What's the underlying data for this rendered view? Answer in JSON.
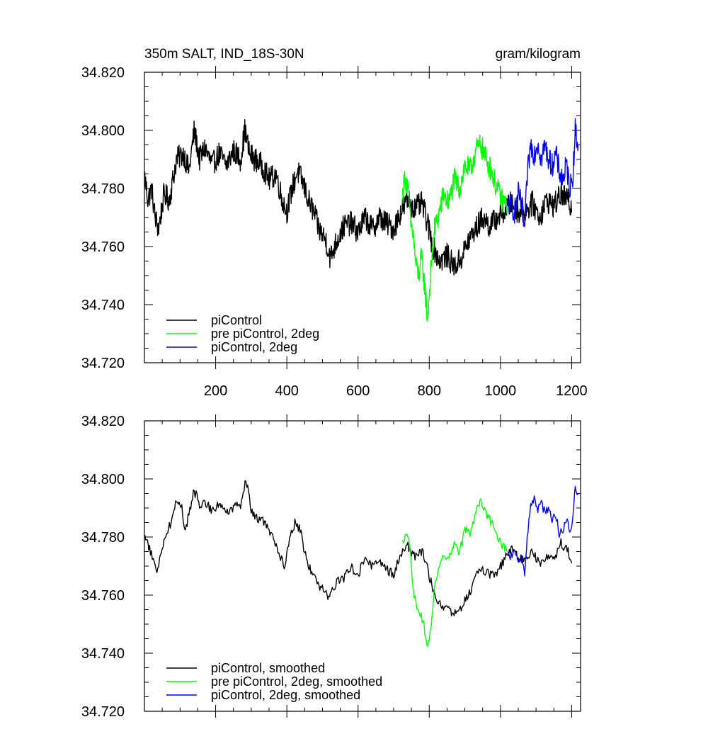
{
  "chart_data": [
    {
      "type": "line",
      "title_left": "350m SALT, IND_18S-30N",
      "title_right": "gram/kilogram",
      "xlabel": "",
      "ylabel": "",
      "xlim": [
        0,
        1225
      ],
      "ylim": [
        34.72,
        34.82
      ],
      "x_ticks": [
        200,
        400,
        600,
        800,
        1000,
        1200
      ],
      "x_tick_labels": [
        "200",
        "400",
        "600",
        "800",
        "1000",
        "1200"
      ],
      "y_ticks": [
        34.72,
        34.74,
        34.76,
        34.78,
        34.8,
        34.82
      ],
      "y_tick_labels": [
        "34.720",
        "34.740",
        "34.760",
        "34.780",
        "34.800",
        "34.820"
      ],
      "grid": false,
      "legend_position": "bottom-left",
      "series": [
        {
          "name": "piControl",
          "color": "#000000",
          "x": [
            1,
            10,
            20,
            30,
            40,
            55,
            70,
            90,
            110,
            125,
            140,
            155,
            170,
            190,
            210,
            230,
            250,
            270,
            282,
            295,
            310,
            330,
            350,
            370,
            385,
            400,
            415,
            430,
            445,
            460,
            475,
            490,
            510,
            522,
            540,
            560,
            580,
            600,
            620,
            640,
            660,
            680,
            700,
            720,
            740,
            760,
            780,
            795,
            810,
            830,
            850,
            870,
            890,
            910,
            930,
            950,
            970,
            990,
            1010,
            1030,
            1050,
            1070,
            1090,
            1110,
            1130,
            1150,
            1170,
            1190,
            1200
          ],
          "values": [
            34.784,
            34.776,
            34.78,
            34.77,
            34.766,
            34.778,
            34.776,
            34.79,
            34.792,
            34.786,
            34.8,
            34.79,
            34.794,
            34.788,
            34.792,
            34.788,
            34.793,
            34.79,
            34.8,
            34.792,
            34.79,
            34.788,
            34.783,
            34.785,
            34.777,
            34.772,
            34.78,
            34.786,
            34.782,
            34.776,
            34.772,
            34.766,
            34.762,
            34.756,
            34.762,
            34.767,
            34.768,
            34.765,
            34.77,
            34.766,
            34.77,
            34.768,
            34.766,
            34.772,
            34.776,
            34.773,
            34.775,
            34.768,
            34.76,
            34.755,
            34.757,
            34.753,
            34.756,
            34.762,
            34.766,
            34.77,
            34.767,
            34.77,
            34.772,
            34.775,
            34.772,
            34.772,
            34.775,
            34.77,
            34.776,
            34.774,
            34.778,
            34.776,
            34.773
          ]
        },
        {
          "name": "pre piControl, 2deg",
          "color": "#00ff00",
          "x": [
            725,
            732,
            740,
            748,
            755,
            762,
            770,
            778,
            786,
            795,
            805,
            815,
            825,
            840,
            855,
            870,
            885,
            900,
            915,
            930,
            945,
            960,
            975,
            990,
            1005,
            1020
          ],
          "values": [
            34.778,
            34.784,
            34.78,
            34.768,
            34.764,
            34.754,
            34.75,
            34.756,
            34.748,
            34.735,
            34.752,
            34.766,
            34.77,
            34.778,
            34.775,
            34.783,
            34.78,
            34.788,
            34.786,
            34.793,
            34.795,
            34.79,
            34.786,
            34.78,
            34.776,
            34.774
          ]
        },
        {
          "name": "piControl, 2deg",
          "color": "#0000ff",
          "x": [
            1020,
            1030,
            1040,
            1050,
            1060,
            1068,
            1075,
            1085,
            1095,
            1105,
            1115,
            1125,
            1135,
            1145,
            1155,
            1165,
            1175,
            1185,
            1195,
            1203,
            1210,
            1218
          ],
          "values": [
            34.775,
            34.774,
            34.772,
            34.778,
            34.774,
            34.766,
            34.784,
            34.795,
            34.792,
            34.796,
            34.79,
            34.795,
            34.79,
            34.788,
            34.792,
            34.786,
            34.783,
            34.788,
            34.78,
            34.784,
            34.8,
            34.795
          ]
        }
      ]
    },
    {
      "type": "line",
      "xlabel": "",
      "ylabel": "",
      "xlim": [
        0,
        1225
      ],
      "ylim": [
        34.72,
        34.82
      ],
      "x_ticks": [
        200,
        400,
        600,
        800,
        1000,
        1200
      ],
      "y_ticks": [
        34.72,
        34.74,
        34.76,
        34.78,
        34.8,
        34.82
      ],
      "y_tick_labels": [
        "34.720",
        "34.740",
        "34.760",
        "34.780",
        "34.800",
        "34.820"
      ],
      "grid": false,
      "legend_position": "bottom-left",
      "series": [
        {
          "name": "piControl, smoothed",
          "color": "#000000",
          "x": [
            1,
            12,
            25,
            35,
            45,
            60,
            75,
            90,
            105,
            115,
            125,
            140,
            155,
            170,
            190,
            210,
            230,
            250,
            270,
            285,
            300,
            320,
            340,
            360,
            380,
            395,
            410,
            425,
            440,
            455,
            470,
            485,
            500,
            520,
            540,
            560,
            580,
            600,
            620,
            640,
            660,
            680,
            700,
            720,
            740,
            760,
            780,
            795,
            810,
            830,
            850,
            870,
            890,
            910,
            930,
            950,
            970,
            990,
            1010,
            1030,
            1050,
            1070,
            1090,
            1110,
            1130,
            1150,
            1170,
            1190,
            1200
          ],
          "values": [
            34.78,
            34.777,
            34.772,
            34.767,
            34.774,
            34.781,
            34.785,
            34.793,
            34.79,
            34.782,
            34.788,
            34.796,
            34.791,
            34.792,
            34.789,
            34.792,
            34.788,
            34.79,
            34.791,
            34.8,
            34.789,
            34.786,
            34.785,
            34.78,
            34.773,
            34.77,
            34.78,
            34.786,
            34.781,
            34.772,
            34.768,
            34.764,
            34.762,
            34.759,
            34.765,
            34.766,
            34.77,
            34.767,
            34.773,
            34.77,
            34.771,
            34.769,
            34.767,
            34.774,
            34.777,
            34.773,
            34.775,
            34.769,
            34.762,
            34.757,
            34.755,
            34.754,
            34.756,
            34.76,
            34.766,
            34.769,
            34.767,
            34.768,
            34.772,
            34.776,
            34.773,
            34.772,
            34.775,
            34.771,
            34.774,
            34.772,
            34.778,
            34.775,
            34.771
          ]
        },
        {
          "name": "pre piControl, 2deg, smoothed",
          "color": "#00ff00",
          "x": [
            725,
            735,
            745,
            755,
            765,
            775,
            785,
            795,
            805,
            815,
            825,
            840,
            855,
            870,
            885,
            900,
            915,
            930,
            945,
            960,
            975,
            990,
            1005,
            1020
          ],
          "values": [
            34.778,
            34.782,
            34.777,
            34.762,
            34.755,
            34.753,
            34.75,
            34.741,
            34.75,
            34.762,
            34.768,
            34.773,
            34.772,
            34.778,
            34.774,
            34.783,
            34.781,
            34.788,
            34.793,
            34.788,
            34.785,
            34.78,
            34.777,
            34.775
          ]
        },
        {
          "name": "piControl, 2deg, smoothed",
          "color": "#0000ff",
          "x": [
            1020,
            1030,
            1040,
            1050,
            1060,
            1068,
            1075,
            1085,
            1095,
            1105,
            1115,
            1125,
            1135,
            1145,
            1155,
            1165,
            1175,
            1185,
            1195,
            1203,
            1210,
            1218
          ],
          "values": [
            34.773,
            34.774,
            34.775,
            34.772,
            34.774,
            34.767,
            34.78,
            34.79,
            34.794,
            34.789,
            34.792,
            34.788,
            34.79,
            34.786,
            34.788,
            34.781,
            34.782,
            34.786,
            34.783,
            34.786,
            34.798,
            34.795
          ]
        }
      ]
    }
  ]
}
